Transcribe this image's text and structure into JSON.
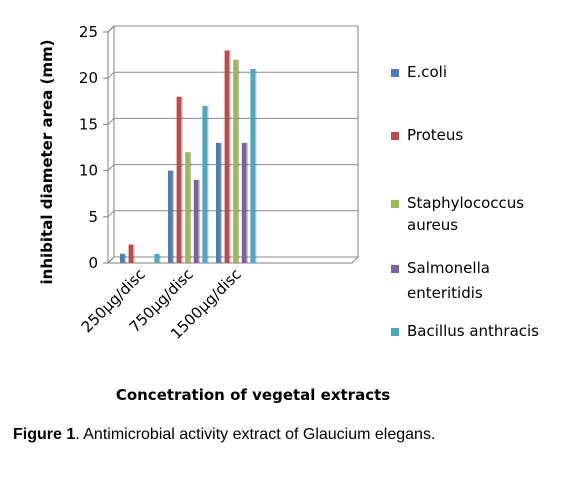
{
  "chart_data": {
    "type": "bar",
    "title": "",
    "xlabel": "Concetration of vegetal extracts",
    "ylabel": "inhibital diameter area (mm)",
    "ylim": [
      0,
      25
    ],
    "yticks": [
      0,
      5,
      10,
      15,
      20,
      25
    ],
    "categories": [
      "250µg/disc",
      "750µg/disc",
      "1500µg/disc"
    ],
    "grid": true,
    "legend_position": "right",
    "series": [
      {
        "name": "E.coli",
        "color": "#4a7ebb",
        "values": [
          1,
          10,
          13
        ]
      },
      {
        "name": "Proteus",
        "color": "#be4b48",
        "values": [
          2,
          18,
          23
        ]
      },
      {
        "name": "Staphylococcus aureus",
        "color": "#98b954",
        "values": [
          0,
          12,
          22
        ]
      },
      {
        "name": "Salmonella enteritidis",
        "color": "#7d60a0",
        "values": [
          0,
          9,
          13
        ]
      },
      {
        "name": "Bacillus anthracis",
        "color": "#46aac5",
        "values": [
          1,
          17,
          21
        ]
      }
    ]
  },
  "caption": {
    "label": "Figure 1",
    "text": ". Antimicrobial activity extract of Glaucium elegans."
  }
}
